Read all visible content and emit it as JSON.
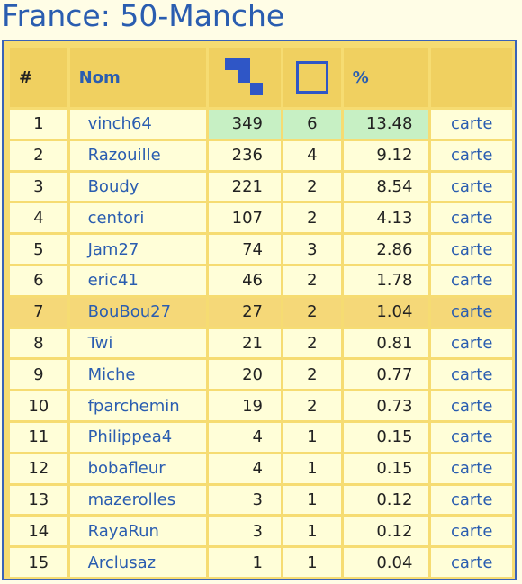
{
  "page": {
    "title": "France: 50-Manche"
  },
  "table": {
    "headers": {
      "rank": "#",
      "name": "Nom",
      "tiles_icon": "tiles-icon",
      "square_icon": "square-icon",
      "percent": "%"
    },
    "rows": [
      {
        "rank": "1",
        "name": "vinch64",
        "tiles": "349",
        "square": "6",
        "percent": "13.48",
        "map": "carte"
      },
      {
        "rank": "2",
        "name": "Razouille",
        "tiles": "236",
        "square": "4",
        "percent": "9.12",
        "map": "carte"
      },
      {
        "rank": "3",
        "name": "Boudy",
        "tiles": "221",
        "square": "2",
        "percent": "8.54",
        "map": "carte"
      },
      {
        "rank": "4",
        "name": "centori",
        "tiles": "107",
        "square": "2",
        "percent": "4.13",
        "map": "carte"
      },
      {
        "rank": "5",
        "name": "Jam27",
        "tiles": "74",
        "square": "3",
        "percent": "2.86",
        "map": "carte"
      },
      {
        "rank": "6",
        "name": "eric41",
        "tiles": "46",
        "square": "2",
        "percent": "1.78",
        "map": "carte"
      },
      {
        "rank": "7",
        "name": "BouBou27",
        "tiles": "27",
        "square": "2",
        "percent": "1.04",
        "map": "carte"
      },
      {
        "rank": "8",
        "name": "Twi",
        "tiles": "21",
        "square": "2",
        "percent": "0.81",
        "map": "carte"
      },
      {
        "rank": "9",
        "name": "Miche",
        "tiles": "20",
        "square": "2",
        "percent": "0.77",
        "map": "carte"
      },
      {
        "rank": "10",
        "name": "fparchemin",
        "tiles": "19",
        "square": "2",
        "percent": "0.73",
        "map": "carte"
      },
      {
        "rank": "11",
        "name": "Philippea4",
        "tiles": "4",
        "square": "1",
        "percent": "0.15",
        "map": "carte"
      },
      {
        "rank": "12",
        "name": "bobafleur",
        "tiles": "4",
        "square": "1",
        "percent": "0.15",
        "map": "carte"
      },
      {
        "rank": "13",
        "name": "mazerolles",
        "tiles": "3",
        "square": "1",
        "percent": "0.12",
        "map": "carte"
      },
      {
        "rank": "14",
        "name": "RayaRun",
        "tiles": "3",
        "square": "1",
        "percent": "0.12",
        "map": "carte"
      },
      {
        "rank": "15",
        "name": "Arclusaz",
        "tiles": "1",
        "square": "1",
        "percent": "0.04",
        "map": "carte"
      }
    ],
    "highlighted_rank": "7",
    "top_rank": "1"
  },
  "colors": {
    "accent": "#2a5db0",
    "header_bg": "#f0d060",
    "highlight_row": "#f5d878",
    "top_row_values": "#c7f0c4"
  }
}
